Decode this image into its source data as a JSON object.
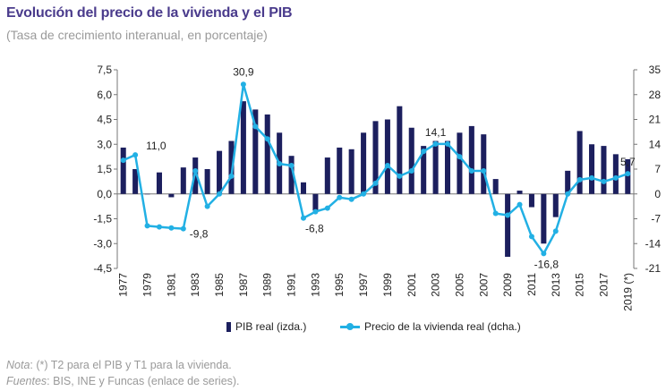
{
  "title": "Evolución del precio de la vivienda y el PIB",
  "subtitle": "(Tasa de crecimiento interanual, en porcentaje)",
  "legend": {
    "bar_label": "PIB real (izda.)",
    "line_label": "Precio de la vivienda real (dcha.)"
  },
  "notes": {
    "nota_label": "Nota",
    "nota_text": ": (*) T2 para el PIB y T1 para la vivienda.",
    "fuentes_label": "Fuentes",
    "fuentes_text": ": BIS, INE y Funcas (enlace de series)."
  },
  "colors": {
    "bars": "#1c1f5e",
    "line": "#22b0e4",
    "title": "#4a3b8c"
  },
  "chart_data": {
    "type": "bar",
    "categories": [
      "1977",
      "1978",
      "1979",
      "1980",
      "1981",
      "1982",
      "1983",
      "1984",
      "1985",
      "1986",
      "1987",
      "1988",
      "1989",
      "1990",
      "1991",
      "1992",
      "1993",
      "1994",
      "1995",
      "1996",
      "1997",
      "1998",
      "1999",
      "2000",
      "2001",
      "2002",
      "2003",
      "2004",
      "2005",
      "2006",
      "2007",
      "2008",
      "2009",
      "2010",
      "2011",
      "2012",
      "2013",
      "2014",
      "2015",
      "2016",
      "2017",
      "2018",
      "2019 (*)"
    ],
    "x_tick_labels": [
      "1977",
      "1979",
      "1981",
      "1983",
      "1985",
      "1987",
      "1989",
      "1991",
      "1993",
      "1995",
      "1997",
      "1999",
      "2001",
      "2003",
      "2005",
      "2007",
      "2009",
      "2011",
      "2013",
      "2015",
      "2017",
      "2019 (*)"
    ],
    "series": [
      {
        "name": "PIB real (izda.)",
        "type": "bar",
        "axis": "left",
        "values": [
          2.8,
          1.5,
          0.0,
          1.3,
          -0.2,
          1.6,
          2.2,
          1.5,
          2.6,
          3.2,
          5.6,
          5.1,
          4.8,
          3.7,
          2.3,
          0.7,
          -1.0,
          2.2,
          2.8,
          2.7,
          3.7,
          4.4,
          4.5,
          5.3,
          4.0,
          2.9,
          3.2,
          3.2,
          3.7,
          4.1,
          3.6,
          0.9,
          -3.8,
          0.2,
          -0.8,
          -3.0,
          -1.4,
          1.4,
          3.8,
          3.0,
          2.9,
          2.4,
          2.1
        ]
      },
      {
        "name": "Precio de la vivienda real (dcha.)",
        "type": "line",
        "axis": "right",
        "values": [
          9.5,
          11.0,
          -9.0,
          -9.3,
          -9.6,
          -9.8,
          6.5,
          -3.5,
          0.0,
          5.0,
          30.9,
          19.0,
          15.5,
          8.5,
          8.0,
          -6.8,
          -5.0,
          -4.0,
          -1.0,
          -1.5,
          0.0,
          3.0,
          8.0,
          5.0,
          6.5,
          12.0,
          14.1,
          14.1,
          10.5,
          6.5,
          6.5,
          -5.5,
          -6.0,
          -3.0,
          -12.0,
          -16.8,
          -10.5,
          0.0,
          4.0,
          4.5,
          3.5,
          4.5,
          5.7
        ]
      }
    ],
    "data_labels": [
      {
        "category": "1978",
        "text": "11,0"
      },
      {
        "category": "1982",
        "text": "-9,8"
      },
      {
        "category": "1987",
        "text": "30,9"
      },
      {
        "category": "1992",
        "text": "-6,8"
      },
      {
        "category": "2003",
        "text": "14,1"
      },
      {
        "category": "2012",
        "text": "-16,8"
      },
      {
        "category": "2019 (*)",
        "text": "5,7"
      }
    ],
    "y_left": {
      "min": -4.5,
      "max": 7.5,
      "ticks": [
        "7,5",
        "6,0",
        "4,5",
        "3,0",
        "1,5",
        "0,0",
        "-1,5",
        "-3,0",
        "-4,5"
      ]
    },
    "y_right": {
      "min": -21,
      "max": 35,
      "ticks": [
        "35",
        "28",
        "21",
        "14",
        "7",
        "0",
        "-7",
        "-14",
        "-21"
      ]
    },
    "grid": false
  }
}
